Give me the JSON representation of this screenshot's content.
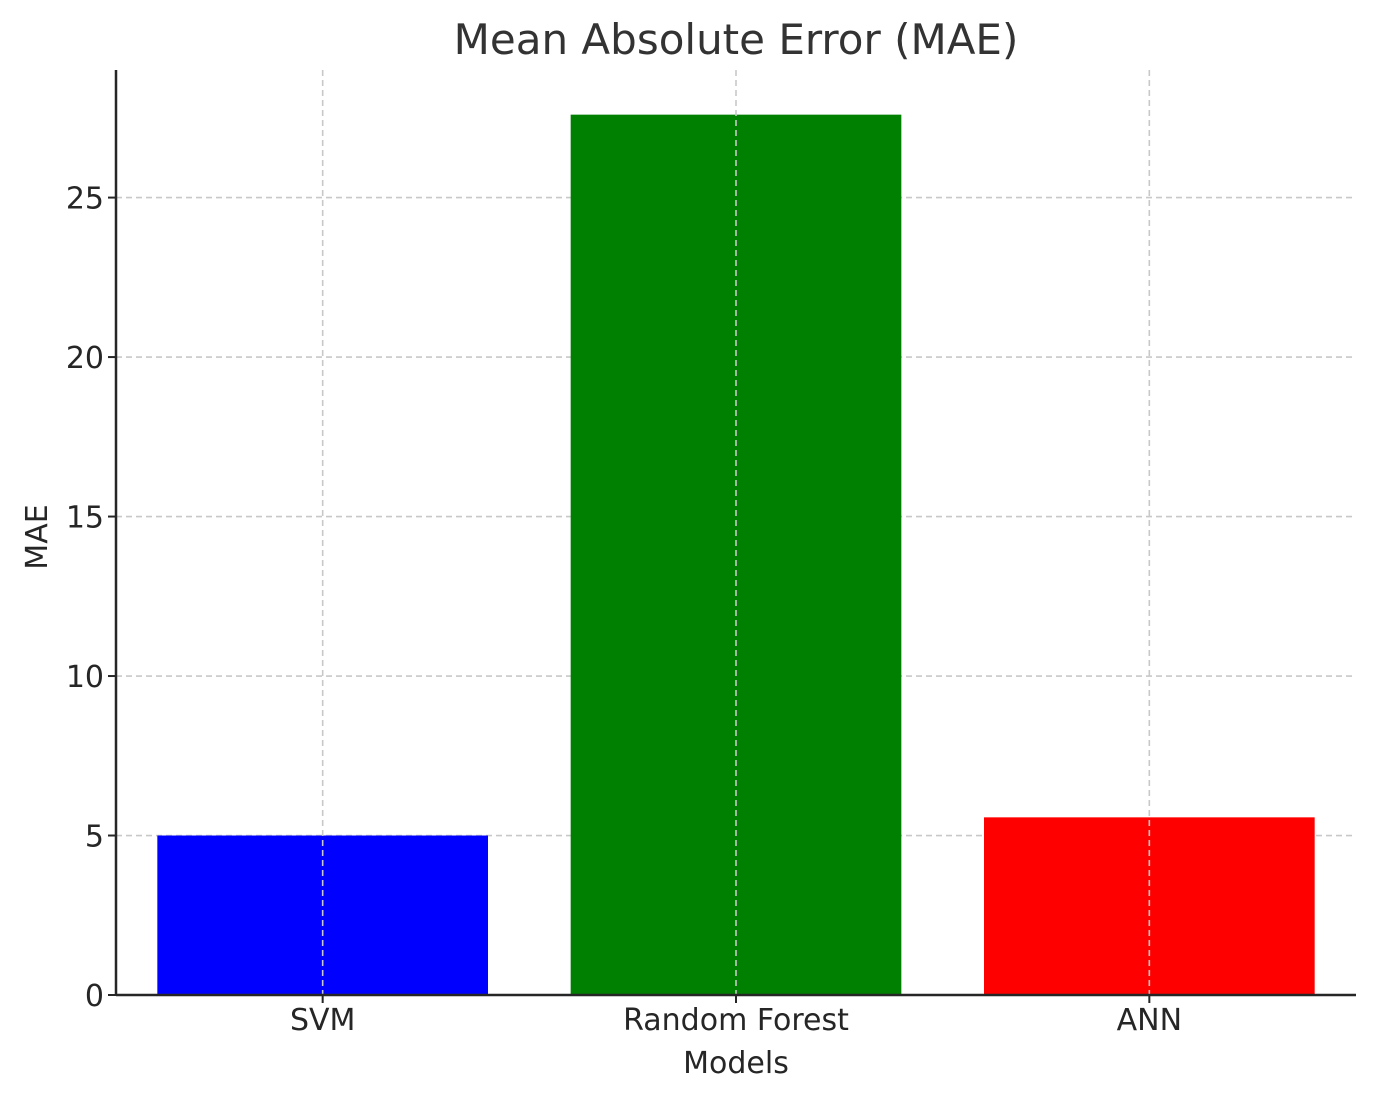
{
  "chart_data": {
    "type": "bar",
    "title": "Mean Absolute Error (MAE)",
    "xlabel": "Models",
    "ylabel": "MAE",
    "categories": [
      "SVM",
      "Random Forest",
      "ANN"
    ],
    "values": [
      5.0,
      27.6,
      5.57
    ],
    "colors": [
      "#0000ff",
      "#008000",
      "#ff0000"
    ],
    "ylim": [
      0,
      29
    ],
    "yticks": [
      0,
      5,
      10,
      15,
      20,
      25
    ],
    "grid": true,
    "legend": false
  }
}
